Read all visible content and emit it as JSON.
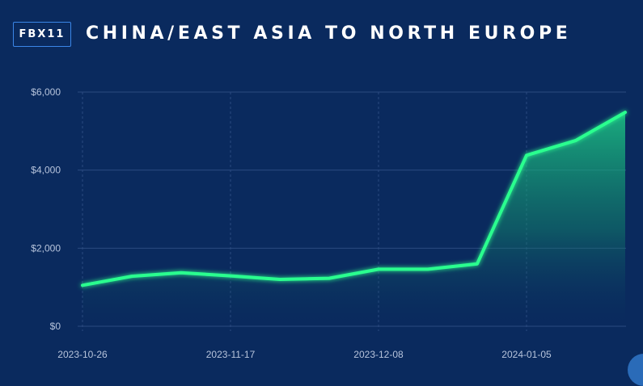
{
  "header": {
    "badge": "FBX11",
    "title": "CHINA/EAST ASIA TO NORTH EUROPE"
  },
  "colors": {
    "background": "#0a2a5e",
    "line": "#2bff8f",
    "grid": "#2b4a80",
    "badge_border": "#3b86e8"
  },
  "chart_data": {
    "type": "area",
    "title": "CHINA/EAST ASIA TO NORTH EUROPE",
    "x": [
      "2023-10-26",
      "2023-11-02",
      "2023-11-09",
      "2023-11-17",
      "2023-11-24",
      "2023-12-01",
      "2023-12-08",
      "2023-12-15",
      "2023-12-22",
      "2024-01-05",
      "2024-01-12",
      "2024-01-19"
    ],
    "series": [
      {
        "values": [
          1050,
          1280,
          1370,
          1290,
          1200,
          1230,
          1460,
          1460,
          1600,
          4380,
          4760,
          5480
        ]
      }
    ],
    "x_ticks": [
      "2023-10-26",
      "2023-11-17",
      "2023-12-08",
      "2024-01-05"
    ],
    "y_ticks": [
      "$0",
      "$2,000",
      "$4,000",
      "$6,000"
    ],
    "ylim": [
      0,
      6000
    ],
    "xlabel": "",
    "ylabel": "",
    "grid": true,
    "legend": "none"
  }
}
